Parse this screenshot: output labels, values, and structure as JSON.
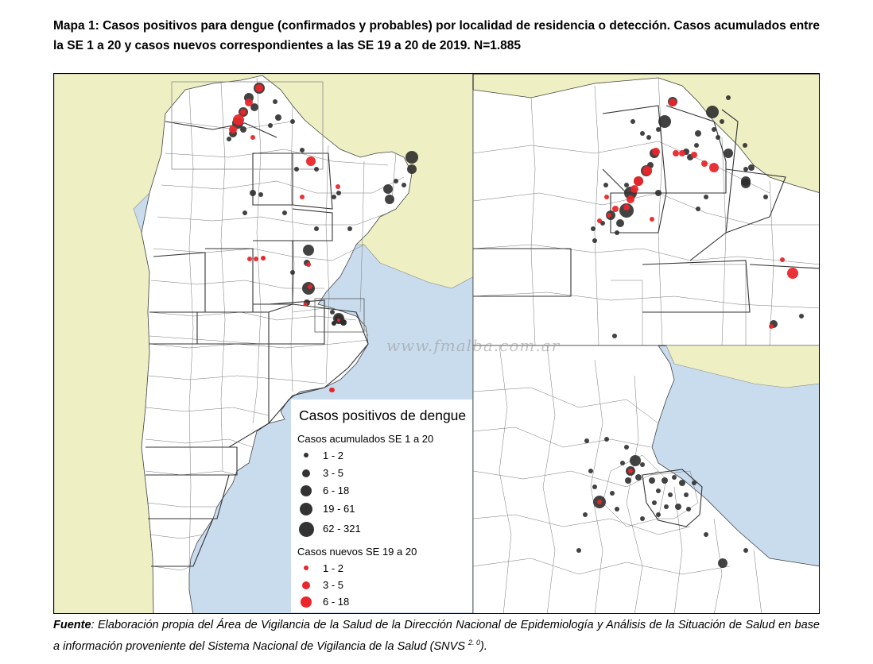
{
  "title": "Mapa 1: Casos positivos para dengue (confirmados y probables) por localidad de residencia o detección. Casos acumulados entre la SE 1 a 20 y casos nuevos correspondientes a las SE 19 a 20 de 2019. N=1.885",
  "watermark": "www.fmalba.com.ar",
  "legend": {
    "title": "Casos positivos de dengue",
    "accum_title": "Casos acumulados SE 1 a 20",
    "accum_items": [
      "1 - 2",
      "3 - 5",
      "6 - 18",
      "19 - 61",
      "62 - 321"
    ],
    "new_title": "Casos nuevos SE 19 a 20",
    "new_items": [
      "1 - 2",
      "3 - 5",
      "6 - 18"
    ]
  },
  "colors": {
    "water": "#c9dcee",
    "neighbor_land": "#eef0c4",
    "argentina_land": "#ffffff",
    "boundary": "#555555",
    "accumulated_dot": "#333333",
    "new_dot": "#e8262b"
  },
  "footer": {
    "label": "Fuente",
    "text": ": Elaboración propia del Área de Vigilancia de la Salud de la Dirección Nacional de Epidemiología y Análisis de la Situación de Salud en base a información proveniente del Sistema Nacional de Vigilancia de la Salud (SNVS",
    "sup": "2. 0",
    "end": ")."
  }
}
